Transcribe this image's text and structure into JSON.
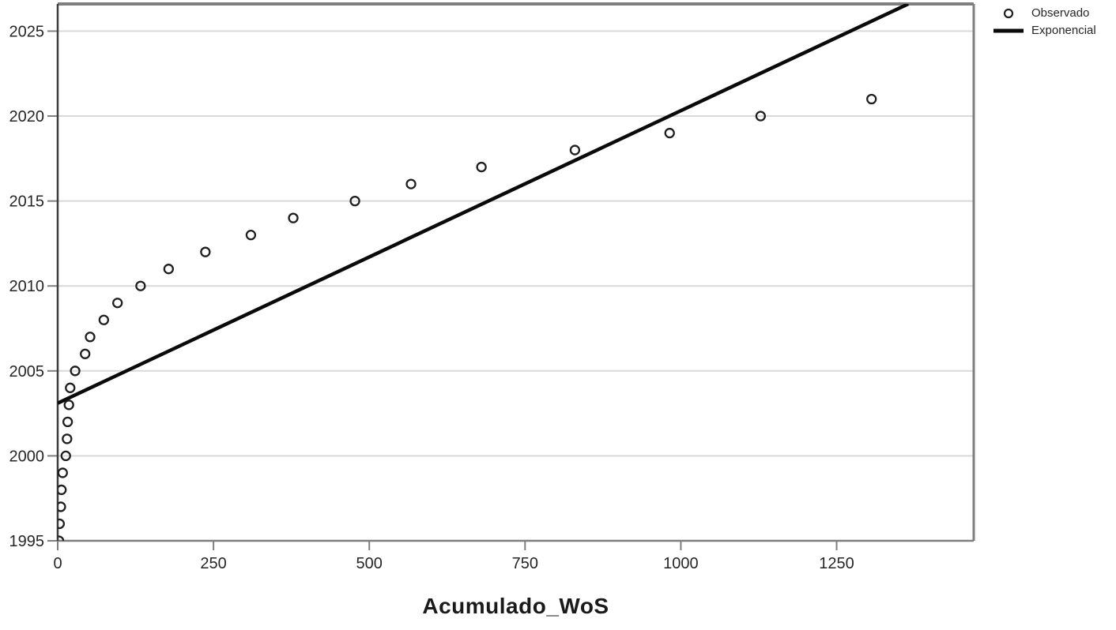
{
  "colors": {
    "background": "#ffffff",
    "text": "#262626",
    "gridline": "#d9d9d9",
    "frame": "#7f7f7f",
    "y_axis_line": "#3d3d3d",
    "marker_stroke": "#1f1f1f",
    "trend_line": "#0a0a0a"
  },
  "legend": {
    "observed_label": "Observado",
    "trend_label": "Exponencial"
  },
  "x_axis_title": "Acumulado_WoS",
  "chart_data": {
    "type": "scatter",
    "title": "",
    "xlabel": "Acumulado_WoS",
    "ylabel": "",
    "xlim": [
      0,
      1470
    ],
    "ylim": [
      1995,
      2026.6
    ],
    "x_ticks": [
      0,
      250,
      500,
      750,
      1000,
      1250
    ],
    "y_ticks": [
      1995,
      2000,
      2005,
      2010,
      2015,
      2020,
      2025
    ],
    "grid": "horizontal-only",
    "legend_position": "top-right-outside",
    "series": [
      {
        "name": "Observado",
        "style": "open-circle-markers",
        "points": [
          {
            "year": 1995,
            "value": 2
          },
          {
            "year": 1996,
            "value": 3
          },
          {
            "year": 1997,
            "value": 5
          },
          {
            "year": 1998,
            "value": 6
          },
          {
            "year": 1999,
            "value": 8
          },
          {
            "year": 2000,
            "value": 13
          },
          {
            "year": 2001,
            "value": 15
          },
          {
            "year": 2002,
            "value": 16
          },
          {
            "year": 2003,
            "value": 18
          },
          {
            "year": 2004,
            "value": 20
          },
          {
            "year": 2005,
            "value": 28
          },
          {
            "year": 2006,
            "value": 44
          },
          {
            "year": 2007,
            "value": 52
          },
          {
            "year": 2008,
            "value": 74
          },
          {
            "year": 2009,
            "value": 96
          },
          {
            "year": 2010,
            "value": 133
          },
          {
            "year": 2011,
            "value": 178
          },
          {
            "year": 2012,
            "value": 237
          },
          {
            "year": 2013,
            "value": 310
          },
          {
            "year": 2014,
            "value": 378
          },
          {
            "year": 2015,
            "value": 477
          },
          {
            "year": 2016,
            "value": 567
          },
          {
            "year": 2017,
            "value": 680
          },
          {
            "year": 2018,
            "value": 830
          },
          {
            "year": 2019,
            "value": 982
          },
          {
            "year": 2020,
            "value": 1128
          },
          {
            "year": 2021,
            "value": 1306
          }
        ]
      },
      {
        "name": "Exponencial",
        "style": "thick-line",
        "line": {
          "value_start": 0,
          "year_start": 2003.1,
          "value_end": 1365,
          "year_end": 2026.6
        }
      }
    ]
  }
}
